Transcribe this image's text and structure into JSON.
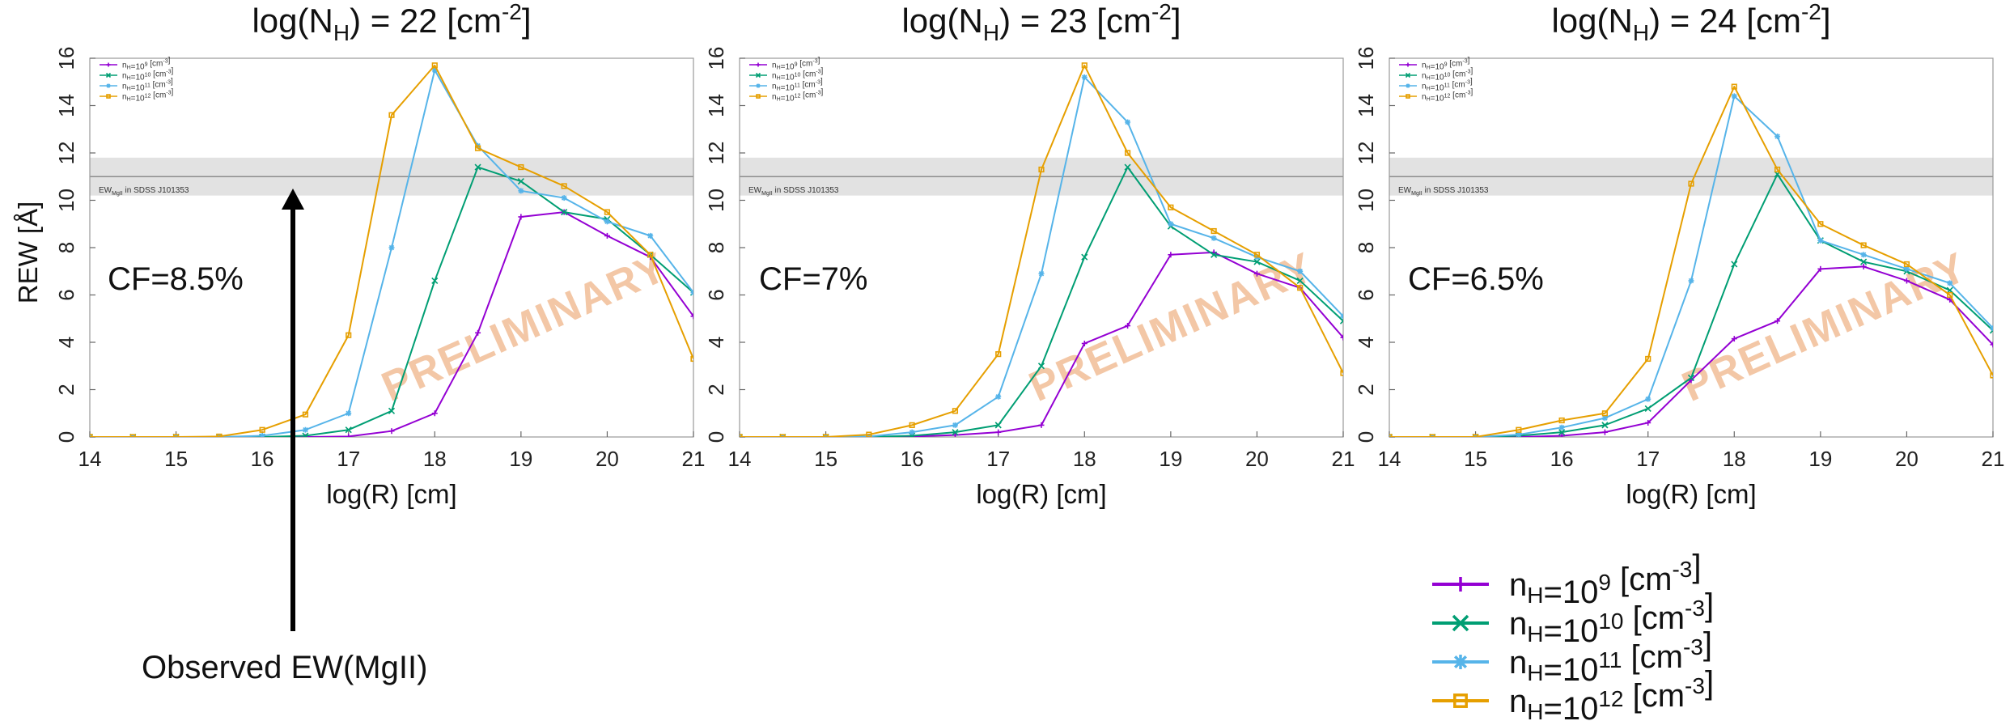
{
  "colors": {
    "nH9": "#9400d3",
    "nH10": "#009e73",
    "nH11": "#56b4e9",
    "nH12": "#e69f00",
    "band": "#e2e2e2",
    "band_line": "#8c8c8c",
    "watermark": "#f3c7a6"
  },
  "series_defs": [
    {
      "name": "n_H=10^9 [cm^-3]",
      "marker": "plus",
      "color_key": "nH9"
    },
    {
      "name": "n_H=10^10 [cm^-3]",
      "marker": "cross",
      "color_key": "nH10"
    },
    {
      "name": "n_H=10^11 [cm^-3]",
      "marker": "star",
      "color_key": "nH11"
    },
    {
      "name": "n_H=10^12 [cm^-3]",
      "marker": "square",
      "color_key": "nH12"
    }
  ],
  "legend_labels": [
    {
      "base": "n",
      "sub": "H",
      "mid": "=10",
      "sup": "9",
      "tail": " [cm",
      "sup2": "-3",
      "end": "]"
    },
    {
      "base": "n",
      "sub": "H",
      "mid": "=10",
      "sup": "10",
      "tail": " [cm",
      "sup2": "-3",
      "end": "]"
    },
    {
      "base": "n",
      "sub": "H",
      "mid": "=10",
      "sup": "11",
      "tail": " [cm",
      "sup2": "-3",
      "end": "]"
    },
    {
      "base": "n",
      "sub": "H",
      "mid": "=10",
      "sup": "12",
      "tail": " [cm",
      "sup2": "-3",
      "end": "]"
    }
  ],
  "band_label": "EW_MgII in SDSS J101353",
  "watermark": "PRELIMINARY",
  "annotation": "Observed EW(MgII)",
  "ylabel": "REW [Å]",
  "xlabel": "log(R) [cm]",
  "chart_data": [
    {
      "type": "line",
      "title": {
        "prefix": "log(N",
        "sub": "H",
        "mid": ") = 22 [cm",
        "sup": "-2",
        "end": "]"
      },
      "cf_label": "CF=8.5%",
      "xlim": [
        14,
        21
      ],
      "ylim": [
        0,
        16
      ],
      "xticks": [
        14,
        15,
        16,
        17,
        18,
        19,
        20,
        21
      ],
      "yticks": [
        0,
        2,
        4,
        6,
        8,
        10,
        12,
        14,
        16
      ],
      "observed_band": {
        "center": 11.0,
        "low": 10.2,
        "high": 11.8
      },
      "x": [
        14,
        14.5,
        15,
        15.5,
        16,
        16.5,
        17,
        17.5,
        18,
        18.5,
        19,
        19.5,
        20,
        20.5,
        21
      ],
      "series": [
        {
          "name": "n_H=10^9 [cm^-3]",
          "values": [
            0,
            0,
            0,
            0,
            0,
            0,
            0.02,
            0.25,
            1.0,
            4.4,
            9.3,
            9.5,
            8.5,
            7.6,
            5.1
          ]
        },
        {
          "name": "n_H=10^10 [cm^-3]",
          "values": [
            0,
            0,
            0,
            0,
            0,
            0.05,
            0.3,
            1.1,
            6.6,
            11.4,
            10.8,
            9.5,
            9.2,
            7.7,
            6.1
          ]
        },
        {
          "name": "n_H=10^11 [cm^-3]",
          "values": [
            0,
            0,
            0,
            0,
            0.05,
            0.3,
            1.0,
            8.0,
            15.5,
            12.3,
            10.4,
            10.1,
            9.1,
            8.5,
            6.1
          ]
        },
        {
          "name": "n_H=10^12 [cm^-3]",
          "values": [
            0,
            0,
            0,
            0.02,
            0.3,
            0.95,
            4.3,
            13.6,
            15.7,
            12.2,
            11.4,
            10.6,
            9.5,
            7.7,
            3.3
          ]
        }
      ]
    },
    {
      "type": "line",
      "title": {
        "prefix": "log(N",
        "sub": "H",
        "mid": ") = 23 [cm",
        "sup": "-2",
        "end": "]"
      },
      "cf_label": "CF=7%",
      "xlim": [
        14,
        21
      ],
      "ylim": [
        0,
        16
      ],
      "xticks": [
        14,
        15,
        16,
        17,
        18,
        19,
        20,
        21
      ],
      "yticks": [
        0,
        2,
        4,
        6,
        8,
        10,
        12,
        14,
        16
      ],
      "observed_band": {
        "center": 11.0,
        "low": 10.2,
        "high": 11.8
      },
      "x": [
        14,
        14.5,
        15,
        15.5,
        16,
        16.5,
        17,
        17.5,
        18,
        18.5,
        19,
        19.5,
        20,
        20.5,
        21
      ],
      "series": [
        {
          "name": "n_H=10^9 [cm^-3]",
          "values": [
            0,
            0,
            0,
            0,
            0.02,
            0.08,
            0.2,
            0.5,
            3.95,
            4.7,
            7.7,
            7.8,
            6.9,
            6.3,
            4.2
          ]
        },
        {
          "name": "n_H=10^10 [cm^-3]",
          "values": [
            0,
            0,
            0,
            0,
            0.05,
            0.2,
            0.5,
            3.0,
            7.6,
            11.4,
            8.9,
            7.7,
            7.4,
            6.6,
            4.9
          ]
        },
        {
          "name": "n_H=10^11 [cm^-3]",
          "values": [
            0,
            0,
            0,
            0.02,
            0.2,
            0.5,
            1.7,
            6.9,
            15.2,
            13.3,
            9.0,
            8.4,
            7.6,
            7.0,
            5.1
          ]
        },
        {
          "name": "n_H=10^12 [cm^-3]",
          "values": [
            0,
            0,
            0,
            0.1,
            0.5,
            1.1,
            3.5,
            11.3,
            15.7,
            12.0,
            9.7,
            8.7,
            7.7,
            6.3,
            2.7
          ]
        }
      ]
    },
    {
      "type": "line",
      "title": {
        "prefix": "log(N",
        "sub": "H",
        "mid": ") = 24 [cm",
        "sup": "-2",
        "end": "]"
      },
      "cf_label": "CF=6.5%",
      "xlim": [
        14,
        21
      ],
      "ylim": [
        0,
        16
      ],
      "xticks": [
        14,
        15,
        16,
        17,
        18,
        19,
        20,
        21
      ],
      "yticks": [
        0,
        2,
        4,
        6,
        8,
        10,
        12,
        14,
        16
      ],
      "observed_band": {
        "center": 11.0,
        "low": 10.2,
        "high": 11.8
      },
      "x": [
        14,
        14.5,
        15,
        15.5,
        16,
        16.5,
        17,
        17.5,
        18,
        18.5,
        19,
        19.5,
        20,
        20.5,
        21
      ],
      "series": [
        {
          "name": "n_H=10^9 [cm^-3]",
          "values": [
            0,
            0,
            0,
            0,
            0.05,
            0.2,
            0.6,
            2.4,
            4.15,
            4.9,
            7.1,
            7.2,
            6.6,
            5.8,
            3.9
          ]
        },
        {
          "name": "n_H=10^10 [cm^-3]",
          "values": [
            0,
            0,
            0,
            0.05,
            0.2,
            0.5,
            1.2,
            2.5,
            7.3,
            11.1,
            8.3,
            7.4,
            7.0,
            6.2,
            4.5
          ]
        },
        {
          "name": "n_H=10^11 [cm^-3]",
          "values": [
            0,
            0,
            0,
            0.1,
            0.4,
            0.8,
            1.6,
            6.6,
            14.4,
            12.7,
            8.3,
            7.7,
            7.1,
            6.5,
            4.6
          ]
        },
        {
          "name": "n_H=10^12 [cm^-3]",
          "values": [
            0,
            0,
            0,
            0.3,
            0.7,
            1.0,
            3.3,
            10.7,
            14.8,
            11.3,
            9.0,
            8.1,
            7.3,
            6.0,
            2.6
          ]
        }
      ]
    }
  ]
}
